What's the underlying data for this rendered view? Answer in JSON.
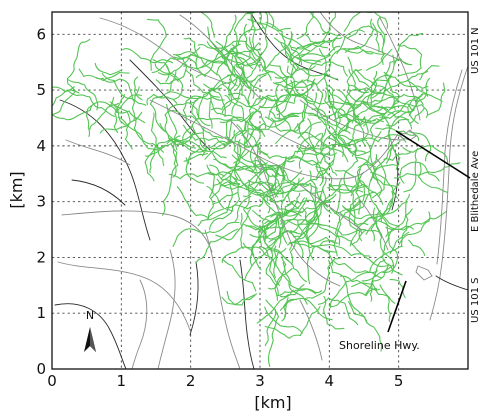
{
  "axes": {
    "xlabel": "[km]",
    "ylabel": "[km]",
    "x_ticks": [
      "0",
      "1",
      "2",
      "3",
      "4",
      "5"
    ],
    "y_ticks": [
      "0",
      "1",
      "2",
      "3",
      "4",
      "5",
      "6"
    ],
    "xlim": [
      0,
      6
    ],
    "ylim": [
      0,
      6.4
    ],
    "grid": true
  },
  "annotations": {
    "north_arrow": "N",
    "shoreline": "Shoreline Hwy.",
    "blithedale": "E Blithedale Ave",
    "us101_north": "US 101 N",
    "us101_south": "US 101 S"
  },
  "colors": {
    "road_network": "#55c455",
    "background_roads": "#8a8a8a",
    "boundary": "#2a2a2a"
  }
}
